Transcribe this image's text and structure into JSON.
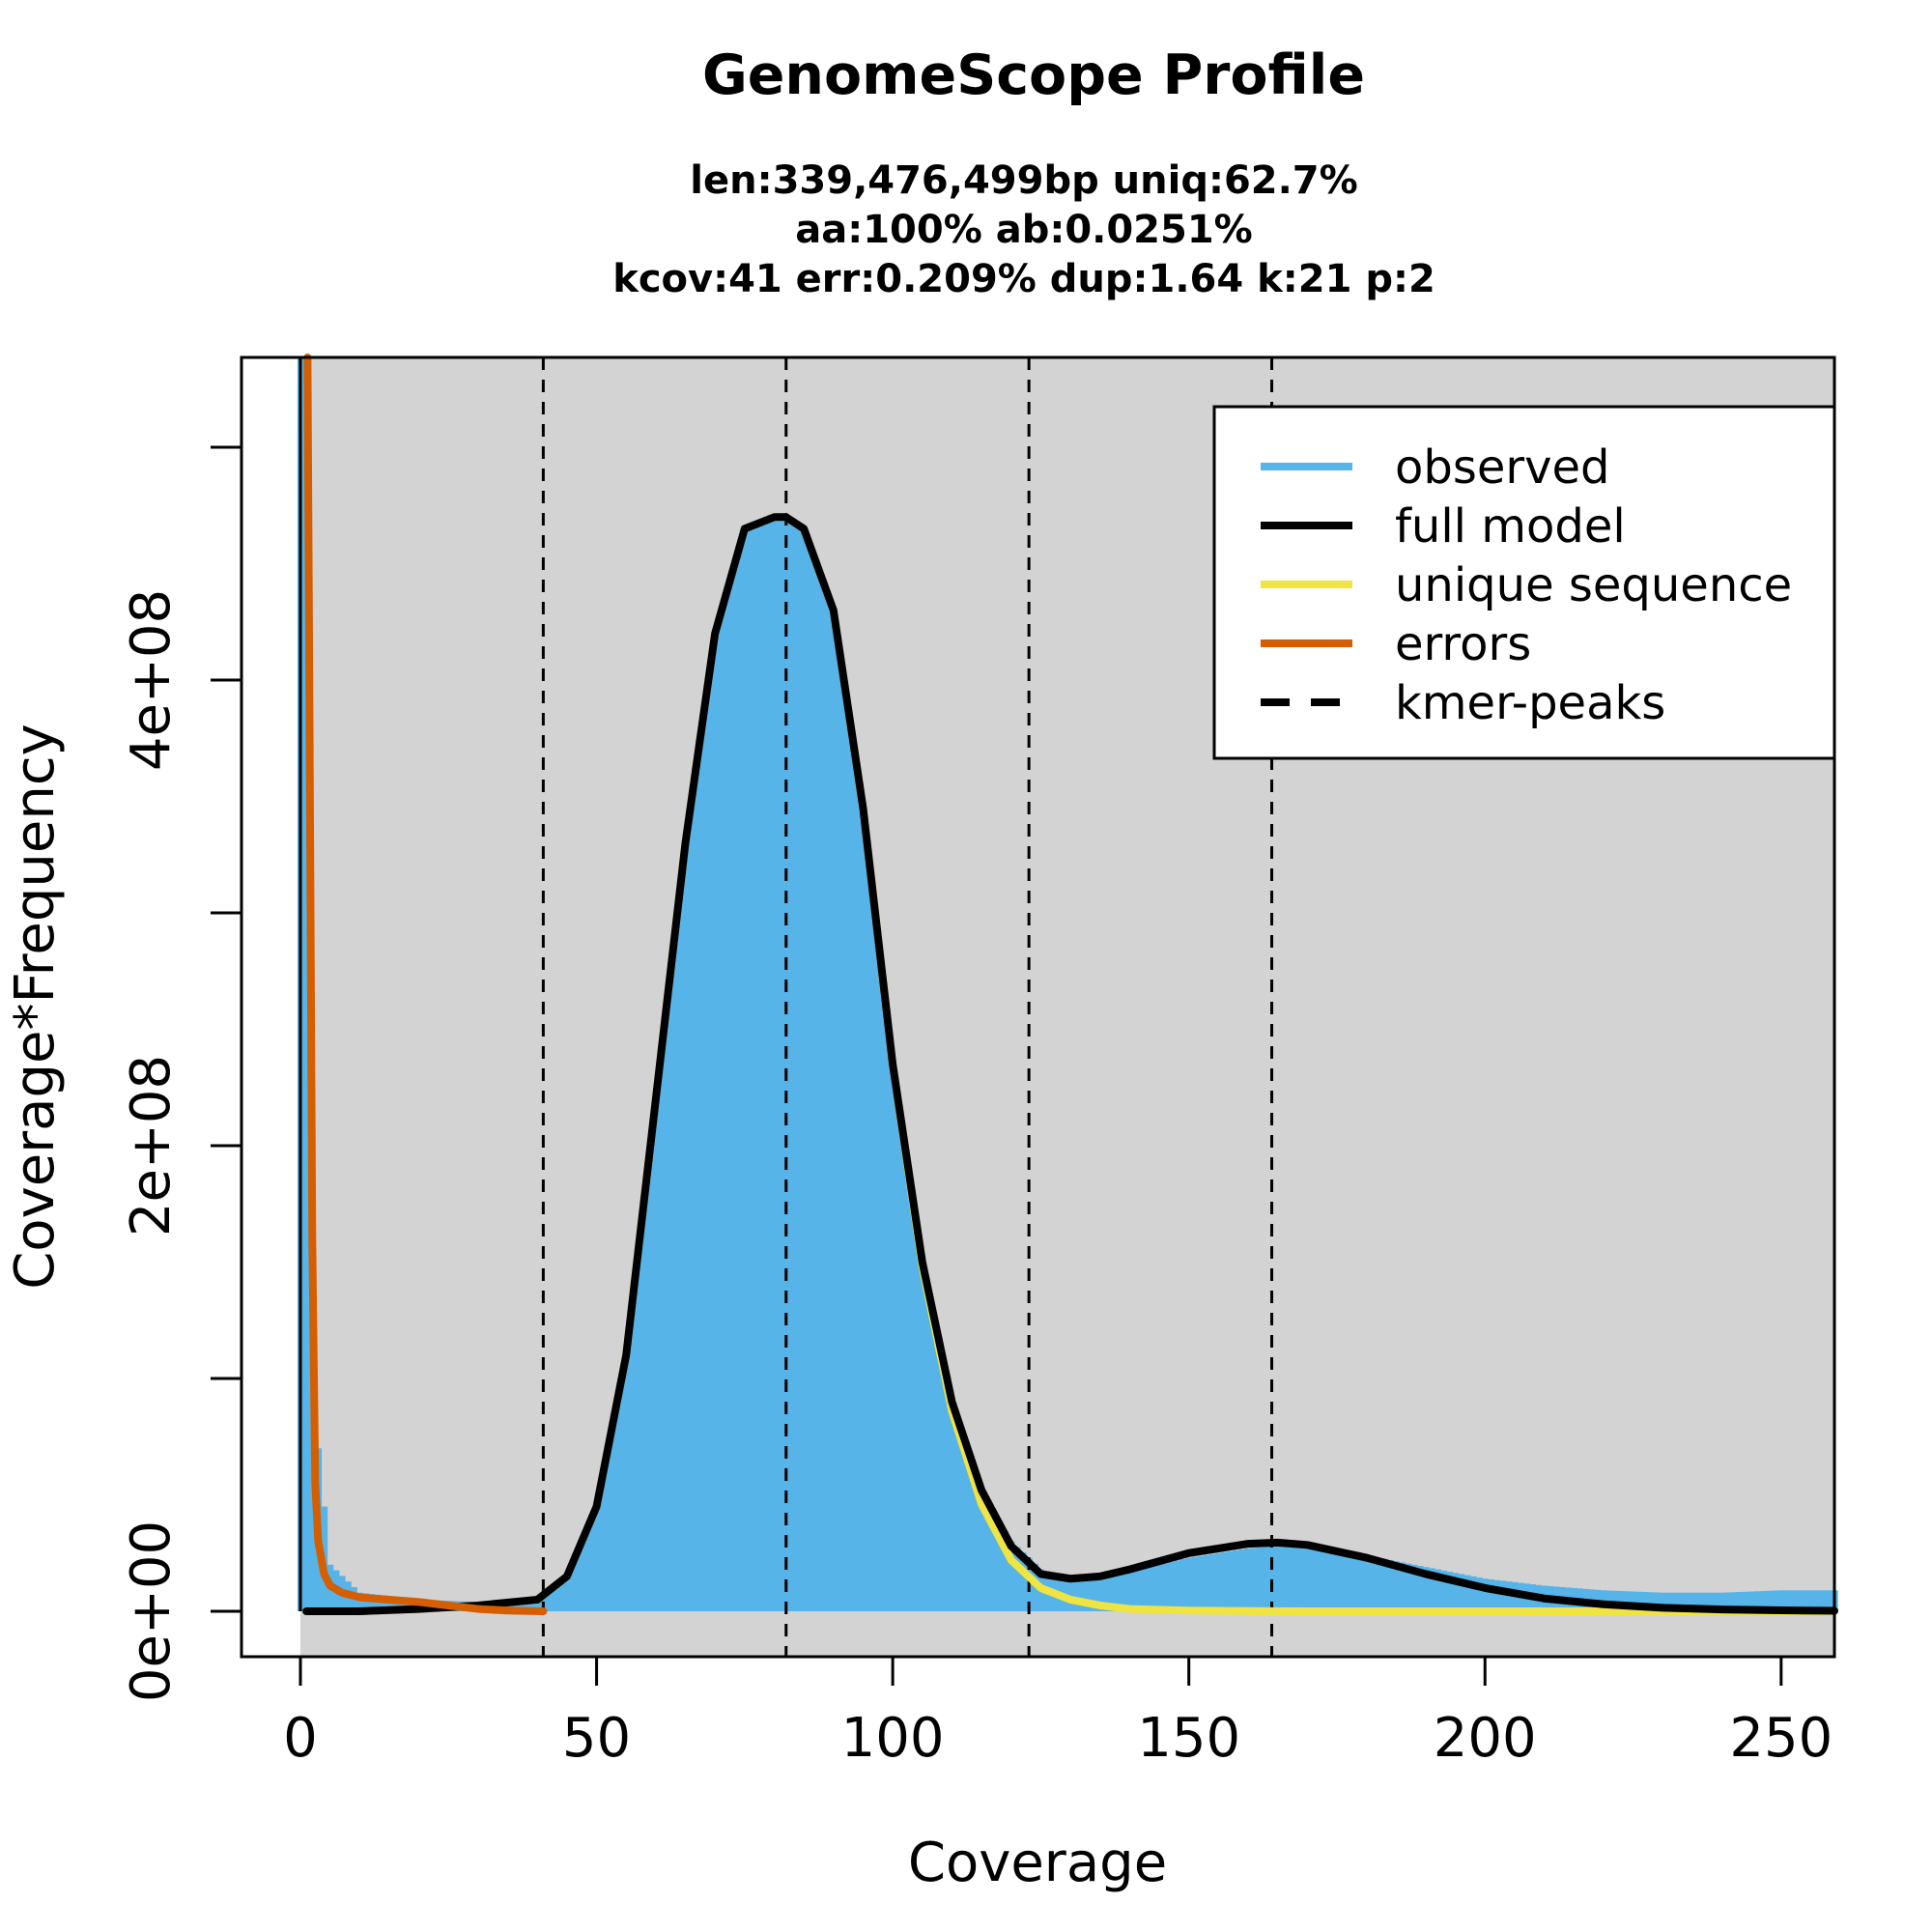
{
  "chart_data": {
    "type": "area",
    "title": "GenomeScope Profile",
    "subtitle_lines": [
      "len:339,476,499bp uniq:62.7%",
      "aa:100% ab:0.0251%",
      "kcov:41 err:0.209%  dup:1.64  k:21 p:2"
    ],
    "xlabel": "Coverage",
    "ylabel": "Coverage*Frequency",
    "xlim": [
      0,
      259
    ],
    "ylim": [
      0,
      500000000
    ],
    "x_ticks": [
      0,
      50,
      100,
      150,
      200,
      250
    ],
    "x_tick_labels": [
      "0",
      "50",
      "100",
      "150",
      "200",
      "250"
    ],
    "y_ticks": [
      0,
      100000000,
      200000000,
      300000000,
      400000000,
      500000000
    ],
    "y_tick_labels": [
      "0e+00",
      "",
      "2e+08",
      "",
      "4e+08",
      ""
    ],
    "grid": false,
    "background_color": "#d3d3d3",
    "legend_position": "top-right",
    "legend": [
      {
        "label": "observed",
        "color": "#56b4e9",
        "style": "solid"
      },
      {
        "label": "full model",
        "color": "#000000",
        "style": "solid"
      },
      {
        "label": "unique sequence",
        "color": "#f0e442",
        "style": "solid"
      },
      {
        "label": "errors",
        "color": "#d55e00",
        "style": "solid"
      },
      {
        "label": "kmer-peaks",
        "color": "#000000",
        "style": "dashed"
      }
    ],
    "kmer_peaks": [
      41,
      82,
      123,
      164
    ],
    "series": [
      {
        "name": "observed",
        "color": "#56b4e9",
        "x": [
          0,
          1,
          2,
          3,
          5,
          10,
          20,
          30,
          40,
          45,
          50,
          55,
          60,
          65,
          70,
          75,
          80,
          82,
          85,
          90,
          95,
          100,
          105,
          110,
          115,
          120,
          125,
          130,
          135,
          140,
          150,
          160,
          165,
          170,
          180,
          190,
          200,
          210,
          220,
          230,
          240,
          250,
          259
        ],
        "y": [
          540000000,
          540000000,
          140000000,
          70000000,
          20000000,
          8000000,
          5000000,
          4000000,
          5000000,
          15000000,
          45000000,
          110000000,
          220000000,
          330000000,
          420000000,
          465000000,
          470000000,
          470000000,
          465000000,
          430000000,
          345000000,
          235000000,
          150000000,
          90000000,
          52000000,
          30000000,
          18000000,
          14000000,
          14000000,
          17000000,
          23000000,
          27000000,
          28000000,
          27000000,
          24000000,
          19000000,
          14000000,
          11000000,
          9000000,
          8000000,
          8000000,
          9000000,
          9000000
        ]
      },
      {
        "name": "full model",
        "color": "#000000",
        "x": [
          1,
          10,
          20,
          30,
          40,
          45,
          50,
          55,
          60,
          65,
          70,
          75,
          80,
          82,
          85,
          90,
          95,
          100,
          105,
          110,
          115,
          120,
          125,
          130,
          135,
          140,
          150,
          160,
          165,
          170,
          180,
          190,
          200,
          210,
          220,
          230,
          240,
          250,
          259
        ],
        "y": [
          0,
          0,
          1000000,
          2500000,
          5000000,
          15000000,
          45000000,
          110000000,
          220000000,
          330000000,
          420000000,
          465000000,
          470000000,
          470000000,
          465000000,
          430000000,
          345000000,
          235000000,
          150000000,
          90000000,
          52000000,
          28000000,
          16000000,
          14000000,
          15000000,
          18000000,
          25000000,
          29000000,
          29500000,
          28500000,
          23000000,
          16000000,
          10000000,
          5500000,
          3000000,
          1500000,
          800000,
          400000,
          200000
        ]
      },
      {
        "name": "unique sequence",
        "color": "#f0e442",
        "x": [
          1,
          10,
          20,
          30,
          40,
          45,
          50,
          55,
          60,
          65,
          70,
          75,
          80,
          82,
          85,
          90,
          95,
          100,
          105,
          110,
          115,
          120,
          125,
          130,
          135,
          140,
          150,
          160,
          170,
          200,
          259
        ],
        "y": [
          0,
          0,
          1000000,
          2500000,
          5000000,
          15000000,
          45000000,
          110000000,
          220000000,
          330000000,
          420000000,
          465000000,
          470000000,
          470000000,
          465000000,
          430000000,
          345000000,
          235000000,
          148000000,
          86000000,
          46000000,
          22000000,
          10000000,
          5000000,
          2500000,
          1000000,
          300000,
          100000,
          0,
          0,
          0
        ]
      },
      {
        "name": "errors",
        "color": "#d55e00",
        "x": [
          1.2,
          1.5,
          2,
          2.5,
          3,
          4,
          5,
          7,
          10,
          15,
          20,
          25,
          30,
          35,
          41
        ],
        "y": [
          540000000,
          400000000,
          160000000,
          55000000,
          30000000,
          16000000,
          11000000,
          8000000,
          6000000,
          5000000,
          4000000,
          2500000,
          1000000,
          300000,
          0
        ]
      }
    ]
  }
}
